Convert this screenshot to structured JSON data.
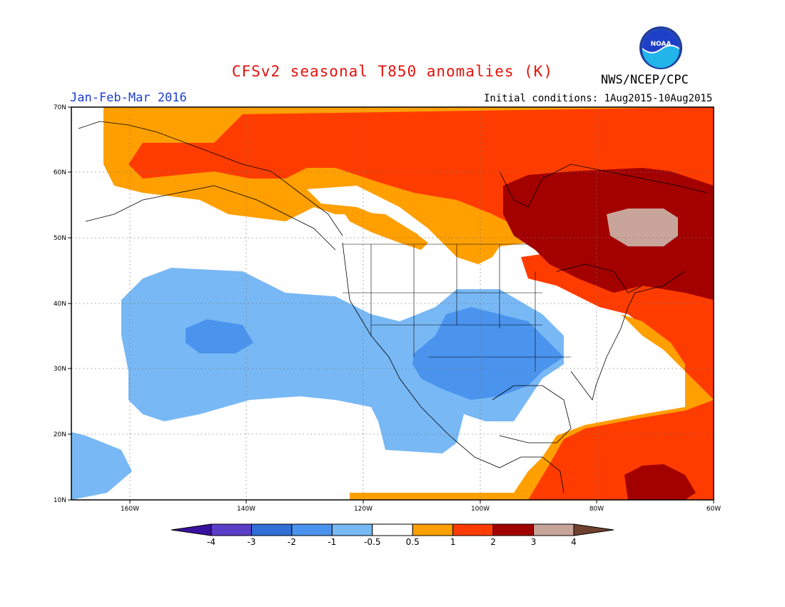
{
  "header": {
    "title": "CFSv2 seasonal T850 anomalies (K)",
    "agency": "NWS/NCEP/CPC",
    "period": "Jan-Feb-Mar 2016",
    "initial_conditions": "Initial conditions: 1Aug2015-10Aug2015",
    "logo_text": "NOAA"
  },
  "map": {
    "region": "North America and adjacent Pacific/Atlantic",
    "lon_range": [
      -170,
      -60
    ],
    "lat_range": [
      10,
      70
    ],
    "lon_labels": [
      "160W",
      "140W",
      "120W",
      "100W",
      "80W",
      "60W"
    ],
    "lat_labels": [
      "70N",
      "60N",
      "50N",
      "40N",
      "30N",
      "20N",
      "10N"
    ],
    "gridlines": "dotted"
  },
  "colorbar": {
    "unit": "K",
    "tick_labels": [
      "-4",
      "-3",
      "-2",
      "-1",
      "-0.5",
      "0.5",
      "1",
      "2",
      "3",
      "4"
    ],
    "colors": [
      "#3a10a0",
      "#5a3ec8",
      "#2f6fd6",
      "#4a94ee",
      "#78b8f5",
      "#ffffff",
      "#ff9f00",
      "#ff3c00",
      "#a30000",
      "#c8a49a",
      "#704030"
    ]
  }
}
